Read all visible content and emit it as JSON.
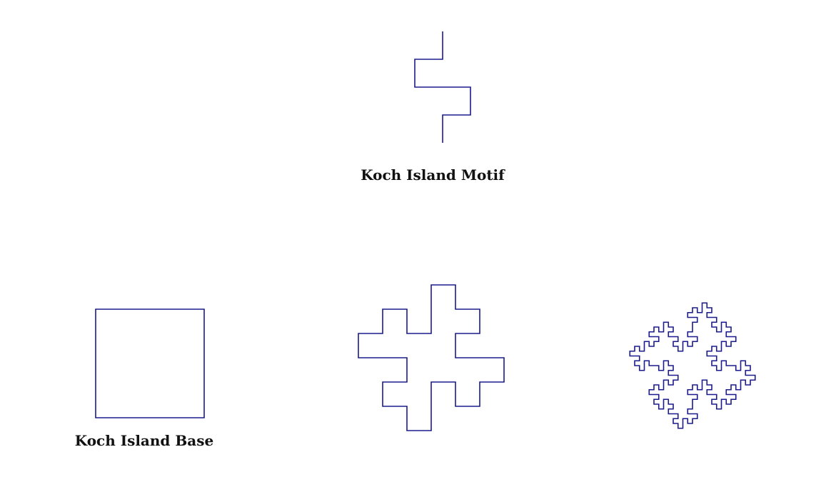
{
  "colors": {
    "stroke": "#1b1b8c",
    "background": "#ffffff",
    "text": "#111111"
  },
  "captions": {
    "motif": "Koch Island Motif",
    "base": "Koch Island Base"
  },
  "figures": {
    "motif": {
      "kind": "koch-motif",
      "order": 0
    },
    "base": {
      "kind": "square",
      "order": 0
    },
    "iteration_1": {
      "kind": "koch-island",
      "order": 1
    },
    "iteration_2": {
      "kind": "koch-island",
      "order": 2
    }
  }
}
